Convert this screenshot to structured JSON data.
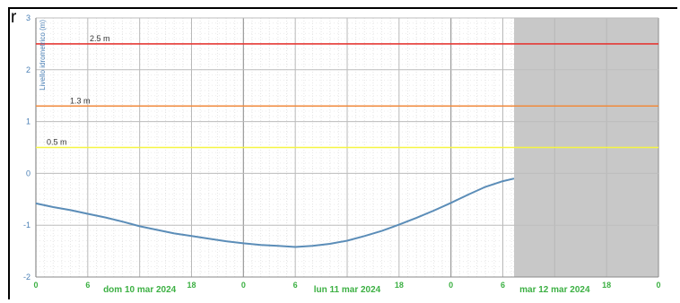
{
  "corner_label": "r",
  "chart_data": {
    "type": "line",
    "ylabel": "Livello idrometrico (m)",
    "ylim": [
      -2,
      3
    ],
    "xlim": [
      0,
      72
    ],
    "x_unit": "hours since 2024-03-10 00:00",
    "y_ticks": [
      "3",
      "2",
      "1",
      "0",
      "-1",
      "-2"
    ],
    "x_ticks": [
      {
        "hour": 0,
        "label": "0"
      },
      {
        "hour": 6,
        "label": "6"
      },
      {
        "hour": 18,
        "label": "18"
      },
      {
        "hour": 24,
        "label": "0"
      },
      {
        "hour": 30,
        "label": "6"
      },
      {
        "hour": 42,
        "label": "18"
      },
      {
        "hour": 48,
        "label": "0"
      },
      {
        "hour": 54,
        "label": "6"
      },
      {
        "hour": 66,
        "label": "18"
      },
      {
        "hour": 72,
        "label": "0"
      }
    ],
    "day_labels": [
      {
        "hour": 12,
        "label": "dom 10 mar 2024"
      },
      {
        "hour": 36,
        "label": "lun 11 mar 2024"
      },
      {
        "hour": 60,
        "label": "mar 12 mar 2024"
      }
    ],
    "thresholds": [
      {
        "value": 2.5,
        "label": "2.5 m",
        "color": "#e53935"
      },
      {
        "value": 1.3,
        "label": "1.3 m",
        "color": "#f08a3c"
      },
      {
        "value": 0.5,
        "label": "0.5 m",
        "color": "#f5f542"
      }
    ],
    "forecast_start_hour": 55.3,
    "series": [
      {
        "color": "#5b8db8",
        "points": [
          [
            0,
            -0.58
          ],
          [
            2,
            -0.65
          ],
          [
            4,
            -0.71
          ],
          [
            6,
            -0.78
          ],
          [
            8,
            -0.85
          ],
          [
            10,
            -0.93
          ],
          [
            12,
            -1.02
          ],
          [
            14,
            -1.09
          ],
          [
            16,
            -1.16
          ],
          [
            18,
            -1.21
          ],
          [
            20,
            -1.26
          ],
          [
            22,
            -1.31
          ],
          [
            24,
            -1.35
          ],
          [
            26,
            -1.38
          ],
          [
            28,
            -1.4
          ],
          [
            30,
            -1.42
          ],
          [
            32,
            -1.4
          ],
          [
            34,
            -1.36
          ],
          [
            36,
            -1.3
          ],
          [
            38,
            -1.21
          ],
          [
            40,
            -1.11
          ],
          [
            42,
            -0.99
          ],
          [
            44,
            -0.86
          ],
          [
            46,
            -0.72
          ],
          [
            48,
            -0.57
          ],
          [
            50,
            -0.41
          ],
          [
            52,
            -0.26
          ],
          [
            54,
            -0.15
          ],
          [
            55.3,
            -0.1
          ]
        ]
      }
    ],
    "grid": true,
    "colors": {
      "axis_tick_text": "#4a7fb5",
      "x_tick_text": "#3cb043",
      "forecast_shade": "#c8c8c8",
      "grid": "#d8d8d8"
    }
  }
}
